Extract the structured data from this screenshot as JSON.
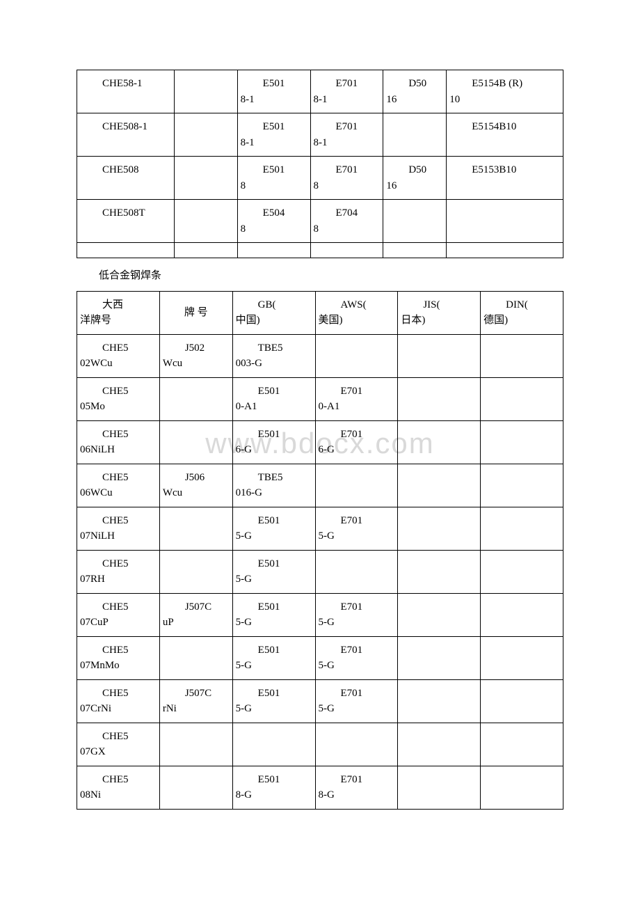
{
  "watermark": "www.bdocx.com",
  "table1": {
    "col_widths_pct": [
      20,
      13,
      15,
      15,
      13,
      24
    ],
    "border_color": "#000000",
    "background_color": "#ffffff",
    "font_size": 15,
    "rows": [
      {
        "c1": {
          "line1": "CHE58-1",
          "line1_indent": true
        },
        "c2": {
          "line1": ""
        },
        "c3": {
          "line1": "E501",
          "line1_indent": true,
          "line2": "8-1"
        },
        "c4": {
          "line1": "E701",
          "line1_indent": true,
          "line2": "8-1"
        },
        "c5": {
          "line1": "D50",
          "line1_indent": true,
          "line2": "16"
        },
        "c6": {
          "line1": "E5154B (R)",
          "line1_indent": true,
          "line2": "10"
        }
      },
      {
        "c1": {
          "line1": "CHE508-1",
          "line1_indent": true
        },
        "c2": {
          "line1": ""
        },
        "c3": {
          "line1": "E501",
          "line1_indent": true,
          "line2": "8-1"
        },
        "c4": {
          "line1": "E701",
          "line1_indent": true,
          "line2": "8-1"
        },
        "c5": {
          "line1": ""
        },
        "c6": {
          "line1": "E5154B10",
          "line1_indent": true
        }
      },
      {
        "c1": {
          "line1": "CHE508",
          "line1_indent": true
        },
        "c2": {
          "line1": ""
        },
        "c3": {
          "line1": "E501",
          "line1_indent": true,
          "line2": "8"
        },
        "c4": {
          "line1": "E701",
          "line1_indent": true,
          "line2": "8"
        },
        "c5": {
          "line1": "D50",
          "line1_indent": true,
          "line2": "16"
        },
        "c6": {
          "line1": "E5153B10",
          "line1_indent": true
        }
      },
      {
        "c1": {
          "line1": "CHE508T",
          "line1_indent": true
        },
        "c2": {
          "line1": ""
        },
        "c3": {
          "line1": "E504",
          "line1_indent": true,
          "line2": "8"
        },
        "c4": {
          "line1": "E704",
          "line1_indent": true,
          "line2": "8"
        },
        "c5": {
          "line1": ""
        },
        "c6": {
          "line1": ""
        }
      }
    ]
  },
  "section_title": "低合金钢焊条",
  "table2": {
    "col_widths_pct": [
      17,
      15,
      17,
      17,
      17,
      17
    ],
    "border_color": "#000000",
    "background_color": "#ffffff",
    "font_size": 15,
    "header": {
      "c1": {
        "line1": "大西",
        "line1_indent": true,
        "line2": "洋牌号"
      },
      "c2": {
        "line1": "牌 号",
        "vcenter": true
      },
      "c3": {
        "line1": "GB(",
        "line1_indent": true,
        "line2": "中国)"
      },
      "c4": {
        "line1": "AWS(",
        "line1_indent": true,
        "line2": "美国)"
      },
      "c5": {
        "line1": "JIS(",
        "line1_indent": true,
        "line2": "日本)"
      },
      "c6": {
        "line1": "DIN(",
        "line1_indent": true,
        "line2": "德国)"
      }
    },
    "rows": [
      {
        "c1": {
          "line1": "CHE5",
          "line1_indent": true,
          "line2": "02WCu"
        },
        "c2": {
          "line1": "J502",
          "line1_indent": true,
          "line2": "Wcu"
        },
        "c3": {
          "line1": "TBE5",
          "line1_indent": true,
          "line2": "003-G"
        },
        "c4": {
          "line1": ""
        },
        "c5": {
          "line1": ""
        },
        "c6": {
          "line1": ""
        }
      },
      {
        "c1": {
          "line1": "CHE5",
          "line1_indent": true,
          "line2": "05Mo"
        },
        "c2": {
          "line1": ""
        },
        "c3": {
          "line1": "E501",
          "line1_indent": true,
          "line2": "0-A1"
        },
        "c4": {
          "line1": "E701",
          "line1_indent": true,
          "line2": "0-A1"
        },
        "c5": {
          "line1": ""
        },
        "c6": {
          "line1": ""
        }
      },
      {
        "c1": {
          "line1": "CHE5",
          "line1_indent": true,
          "line2": "06NiLH"
        },
        "c2": {
          "line1": ""
        },
        "c3": {
          "line1": "E501",
          "line1_indent": true,
          "line2": "6-G"
        },
        "c4": {
          "line1": "E701",
          "line1_indent": true,
          "line2": "6-G"
        },
        "c5": {
          "line1": ""
        },
        "c6": {
          "line1": ""
        }
      },
      {
        "c1": {
          "line1": "CHE5",
          "line1_indent": true,
          "line2": "06WCu"
        },
        "c2": {
          "line1": "J506",
          "line1_indent": true,
          "line2": "Wcu"
        },
        "c3": {
          "line1": "TBE5",
          "line1_indent": true,
          "line2": "016-G"
        },
        "c4": {
          "line1": ""
        },
        "c5": {
          "line1": ""
        },
        "c6": {
          "line1": ""
        }
      },
      {
        "c1": {
          "line1": "CHE5",
          "line1_indent": true,
          "line2": "07NiLH"
        },
        "c2": {
          "line1": ""
        },
        "c3": {
          "line1": "E501",
          "line1_indent": true,
          "line2": "5-G"
        },
        "c4": {
          "line1": "E701",
          "line1_indent": true,
          "line2": "5-G"
        },
        "c5": {
          "line1": ""
        },
        "c6": {
          "line1": ""
        }
      },
      {
        "c1": {
          "line1": "CHE5",
          "line1_indent": true,
          "line2": "07RH"
        },
        "c2": {
          "line1": ""
        },
        "c3": {
          "line1": "E501",
          "line1_indent": true,
          "line2": "5-G"
        },
        "c4": {
          "line1": ""
        },
        "c5": {
          "line1": ""
        },
        "c6": {
          "line1": ""
        }
      },
      {
        "c1": {
          "line1": "CHE5",
          "line1_indent": true,
          "line2": "07CuP"
        },
        "c2": {
          "line1": "J507C",
          "line1_indent": true,
          "line2": "uP"
        },
        "c3": {
          "line1": "E501",
          "line1_indent": true,
          "line2": "5-G"
        },
        "c4": {
          "line1": "E701",
          "line1_indent": true,
          "line2": "5-G"
        },
        "c5": {
          "line1": ""
        },
        "c6": {
          "line1": ""
        }
      },
      {
        "c1": {
          "line1": "CHE5",
          "line1_indent": true,
          "line2": "07MnMo"
        },
        "c2": {
          "line1": ""
        },
        "c3": {
          "line1": "E501",
          "line1_indent": true,
          "line2": "5-G"
        },
        "c4": {
          "line1": "E701",
          "line1_indent": true,
          "line2": "5-G"
        },
        "c5": {
          "line1": ""
        },
        "c6": {
          "line1": ""
        }
      },
      {
        "c1": {
          "line1": "CHE5",
          "line1_indent": true,
          "line2": "07CrNi"
        },
        "c2": {
          "line1": "J507C",
          "line1_indent": true,
          "line2": "rNi"
        },
        "c3": {
          "line1": "E501",
          "line1_indent": true,
          "line2": "5-G"
        },
        "c4": {
          "line1": "E701",
          "line1_indent": true,
          "line2": "5-G"
        },
        "c5": {
          "line1": ""
        },
        "c6": {
          "line1": ""
        }
      },
      {
        "c1": {
          "line1": "CHE5",
          "line1_indent": true,
          "line2": "07GX"
        },
        "c2": {
          "line1": ""
        },
        "c3": {
          "line1": ""
        },
        "c4": {
          "line1": ""
        },
        "c5": {
          "line1": ""
        },
        "c6": {
          "line1": ""
        }
      },
      {
        "c1": {
          "line1": "CHE5",
          "line1_indent": true,
          "line2": "08Ni"
        },
        "c2": {
          "line1": ""
        },
        "c3": {
          "line1": "E501",
          "line1_indent": true,
          "line2": "8-G"
        },
        "c4": {
          "line1": "E701",
          "line1_indent": true,
          "line2": "8-G"
        },
        "c5": {
          "line1": ""
        },
        "c6": {
          "line1": ""
        }
      }
    ]
  }
}
